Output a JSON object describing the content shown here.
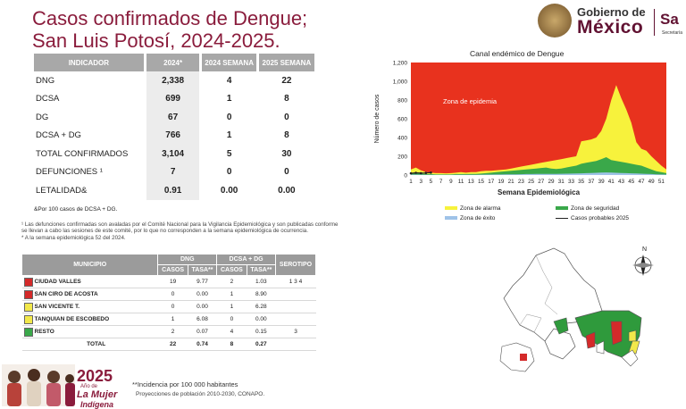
{
  "title": {
    "line1": "Casos confirmados de Dengue;",
    "line2": "San Luis Potosí, 2024-2025."
  },
  "logo": {
    "gobierno": "Gobierno de",
    "mexico": "México",
    "sa": "Sa",
    "secretaria": "Secretaría"
  },
  "indicator_table": {
    "headers": [
      "INDICADOR",
      "2024*",
      "2024 SEMANA",
      "2025 SEMANA"
    ],
    "rows": [
      {
        "label": "DNG",
        "c2024": "2,338",
        "s2024": "4",
        "s2025": "22"
      },
      {
        "label": "DCSA",
        "c2024": "699",
        "s2024": "1",
        "s2025": "8"
      },
      {
        "label": "DG",
        "c2024": "67",
        "s2024": "0",
        "s2025": "0"
      },
      {
        "label": "DCSA + DG",
        "c2024": "766",
        "s2024": "1",
        "s2025": "8"
      },
      {
        "label": "TOTAL CONFIRMADOS",
        "c2024": "3,104",
        "s2024": "5",
        "s2025": "30"
      },
      {
        "label": "DEFUNCIONES ¹",
        "c2024": "7",
        "s2024": "0",
        "s2025": "0"
      },
      {
        "label": "LETALIDAD&",
        "c2024": "0.91",
        "s2024": "0.00",
        "s2025": "0.00"
      }
    ]
  },
  "footnote_letalidad": "&Por 100 casos de DCSA + DG.",
  "notes": {
    "n1": "¹ Las defunciones confirmadas son avaladas por el Comité Nacional para la Vigilancia Epidemiológica y son publicadas conforme se llevan a cabo las sesiones de este comité, por lo que no corresponden a la semana epidemiológica de ocurrencia.",
    "n2": "* A la semana epidemiológica 52 del 2024."
  },
  "municipio_table": {
    "h_municipio": "MUNICIPIO",
    "h_dng": "DNG",
    "h_dcsa": "DCSA + DG",
    "h_serotipo": "SEROTIPO",
    "h_casos": "CASOS",
    "h_tasa": "TASA**",
    "rows": [
      {
        "name": "CIUDAD VALLES",
        "color": "#d42a2a",
        "dng_casos": "19",
        "dng_tasa": "9.77",
        "d_casos": "2",
        "d_tasa": "1.03",
        "serotipo": "1   3   4"
      },
      {
        "name": "SAN CIRO DE ACOSTA",
        "color": "#d42a2a",
        "dng_casos": "0",
        "dng_tasa": "0.00",
        "d_casos": "1",
        "d_tasa": "8.90",
        "serotipo": ""
      },
      {
        "name": "SAN VICENTE T.",
        "color": "#f2e84a",
        "dng_casos": "0",
        "dng_tasa": "0.00",
        "d_casos": "1",
        "d_tasa": "6.28",
        "serotipo": ""
      },
      {
        "name": "TANQUIAN DE ESCOBEDO",
        "color": "#f2e84a",
        "dng_casos": "1",
        "dng_tasa": "6.08",
        "d_casos": "0",
        "d_tasa": "0.00",
        "serotipo": ""
      },
      {
        "name": "RESTO",
        "color": "#3aa84a",
        "dng_casos": "2",
        "dng_tasa": "0.07",
        "d_casos": "4",
        "d_tasa": "0.15",
        "serotipo": "3"
      },
      {
        "name": "TOTAL",
        "color": "",
        "dng_casos": "22",
        "dng_tasa": "0.74",
        "d_casos": "8",
        "d_tasa": "0.27",
        "serotipo": ""
      }
    ]
  },
  "incidence_note": "**Incidencia por 100 000 habitantes",
  "projection_note": "Proyecciones de población 2010-2030,  CONAPO.",
  "banner": {
    "year": "2025",
    "anio": "Año de",
    "mujer": "La Mujer",
    "indigena": "Indígena"
  },
  "map": {
    "north": "N",
    "colors": {
      "red": "#d42a2a",
      "green": "#2f9a3c",
      "yellow": "#f2e84a",
      "white": "#ffffff"
    }
  },
  "chart_data": {
    "type": "area",
    "title": "Canal endémico de Dengue",
    "xlabel": "Semana Epidemiológica",
    "ylabel": "Número de casos",
    "ylim": [
      0,
      1200
    ],
    "yticks": [
      "0",
      "200",
      "400",
      "600",
      "800",
      "1,000",
      "1,200"
    ],
    "xticks": [
      "1",
      "3",
      "5",
      "7",
      "9",
      "11",
      "13",
      "15",
      "17",
      "19",
      "21",
      "23",
      "25",
      "27",
      "29",
      "31",
      "33",
      "35",
      "37",
      "39",
      "41",
      "43",
      "45",
      "47",
      "49",
      "51"
    ],
    "weeks": [
      1,
      2,
      3,
      4,
      5,
      6,
      7,
      8,
      9,
      10,
      11,
      12,
      13,
      14,
      15,
      16,
      17,
      18,
      19,
      20,
      21,
      22,
      23,
      24,
      25,
      26,
      27,
      28,
      29,
      30,
      31,
      32,
      33,
      34,
      35,
      36,
      37,
      38,
      39,
      40,
      41,
      42,
      43,
      44,
      45,
      46,
      47,
      48,
      49,
      50,
      51,
      52
    ],
    "series": [
      {
        "name": "Zona de epidemia",
        "color": "#e8321e",
        "values": [
          1200,
          1200,
          1200,
          1200,
          1200,
          1200,
          1200,
          1200,
          1200,
          1200,
          1200,
          1200,
          1200,
          1200,
          1200,
          1200,
          1200,
          1200,
          1200,
          1200,
          1200,
          1200,
          1200,
          1200,
          1200,
          1200,
          1200,
          1200,
          1200,
          1200,
          1200,
          1200,
          1200,
          1200,
          1200,
          1200,
          1200,
          1200,
          1200,
          1200,
          1200,
          1200,
          1200,
          1200,
          1200,
          1200,
          1200,
          1200,
          1200,
          1200,
          1200,
          1200
        ]
      },
      {
        "name": "Zona de alarma",
        "color": "#f7f23c",
        "values": [
          60,
          80,
          50,
          30,
          25,
          20,
          20,
          18,
          20,
          25,
          30,
          25,
          30,
          30,
          40,
          45,
          45,
          50,
          55,
          60,
          70,
          80,
          90,
          100,
          110,
          120,
          130,
          140,
          150,
          160,
          170,
          180,
          190,
          200,
          360,
          370,
          380,
          400,
          470,
          600,
          800,
          960,
          820,
          700,
          560,
          350,
          280,
          260,
          200,
          150,
          100,
          60
        ]
      },
      {
        "name": "Zona de seguridad",
        "color": "#3aa84a",
        "values": [
          20,
          25,
          15,
          10,
          10,
          8,
          8,
          8,
          8,
          10,
          10,
          10,
          12,
          12,
          15,
          20,
          25,
          30,
          35,
          40,
          45,
          50,
          55,
          60,
          65,
          70,
          75,
          80,
          70,
          65,
          70,
          80,
          90,
          100,
          120,
          130,
          140,
          150,
          170,
          190,
          160,
          150,
          140,
          130,
          120,
          110,
          100,
          80,
          60,
          40,
          30,
          20
        ]
      },
      {
        "name": "Zona de éxito",
        "color": "#9fc3e8",
        "values": [
          5,
          5,
          4,
          3,
          3,
          2,
          2,
          2,
          2,
          3,
          3,
          3,
          3,
          3,
          4,
          5,
          5,
          6,
          6,
          7,
          8,
          8,
          9,
          10,
          10,
          11,
          12,
          12,
          12,
          12,
          13,
          14,
          15,
          16,
          18,
          20,
          22,
          24,
          26,
          28,
          26,
          24,
          22,
          20,
          18,
          16,
          14,
          12,
          10,
          8,
          6,
          5
        ]
      },
      {
        "name": "Casos probables 2025",
        "color": "#222222",
        "values": [
          18,
          24,
          20,
          22,
          26
        ]
      }
    ],
    "legend": [
      "Zona de alarma",
      "Zona de seguridad",
      "Zona de éxito",
      "Casos probables 2025"
    ],
    "annotation": "Zona de epidemia"
  }
}
